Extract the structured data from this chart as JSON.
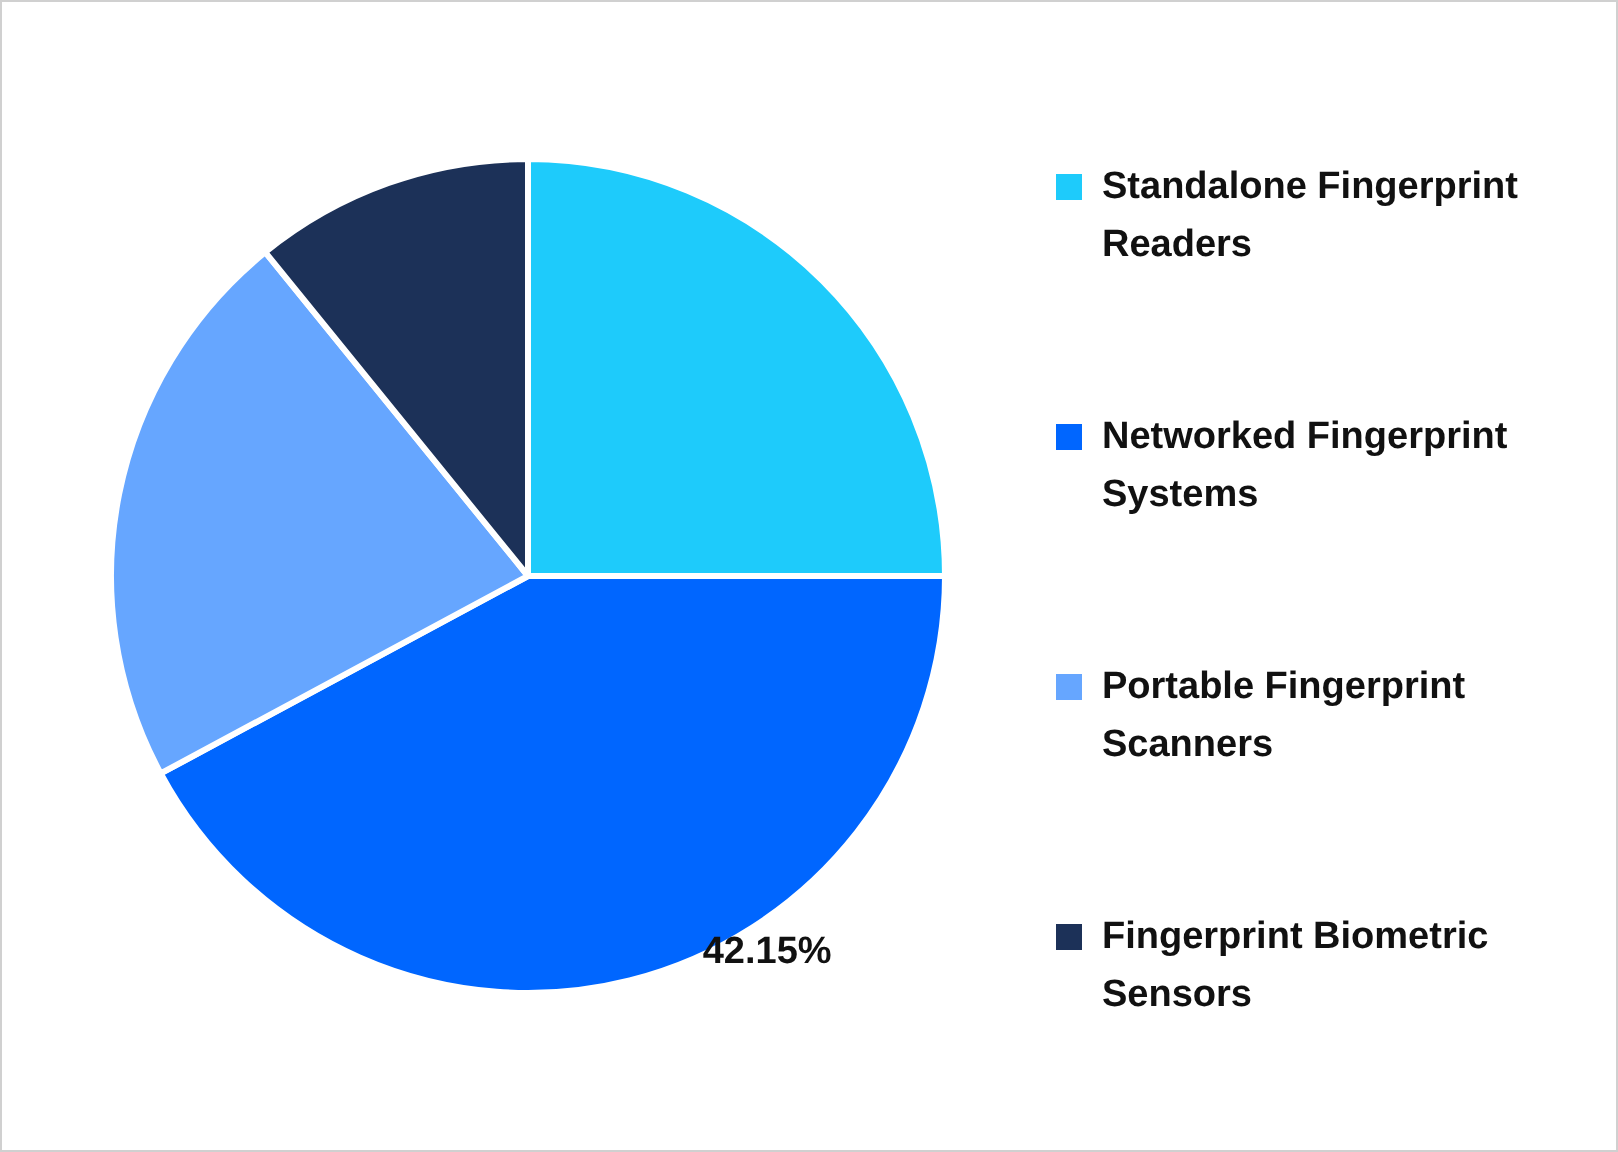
{
  "chart_data": {
    "type": "pie",
    "categories": [
      "Standalone Fingerprint Readers",
      "Networked Fingerprint Systems",
      "Portable Fingerprint Scanners",
      "Fingerprint Biometric Sensors"
    ],
    "values": [
      25,
      42.15,
      22,
      10.85
    ],
    "colors": [
      "#1ecbfb",
      "#0066ff",
      "#66a6ff",
      "#1c3158"
    ],
    "value_labels": [
      null,
      "42.15%",
      null,
      null
    ],
    "legend": "right"
  }
}
